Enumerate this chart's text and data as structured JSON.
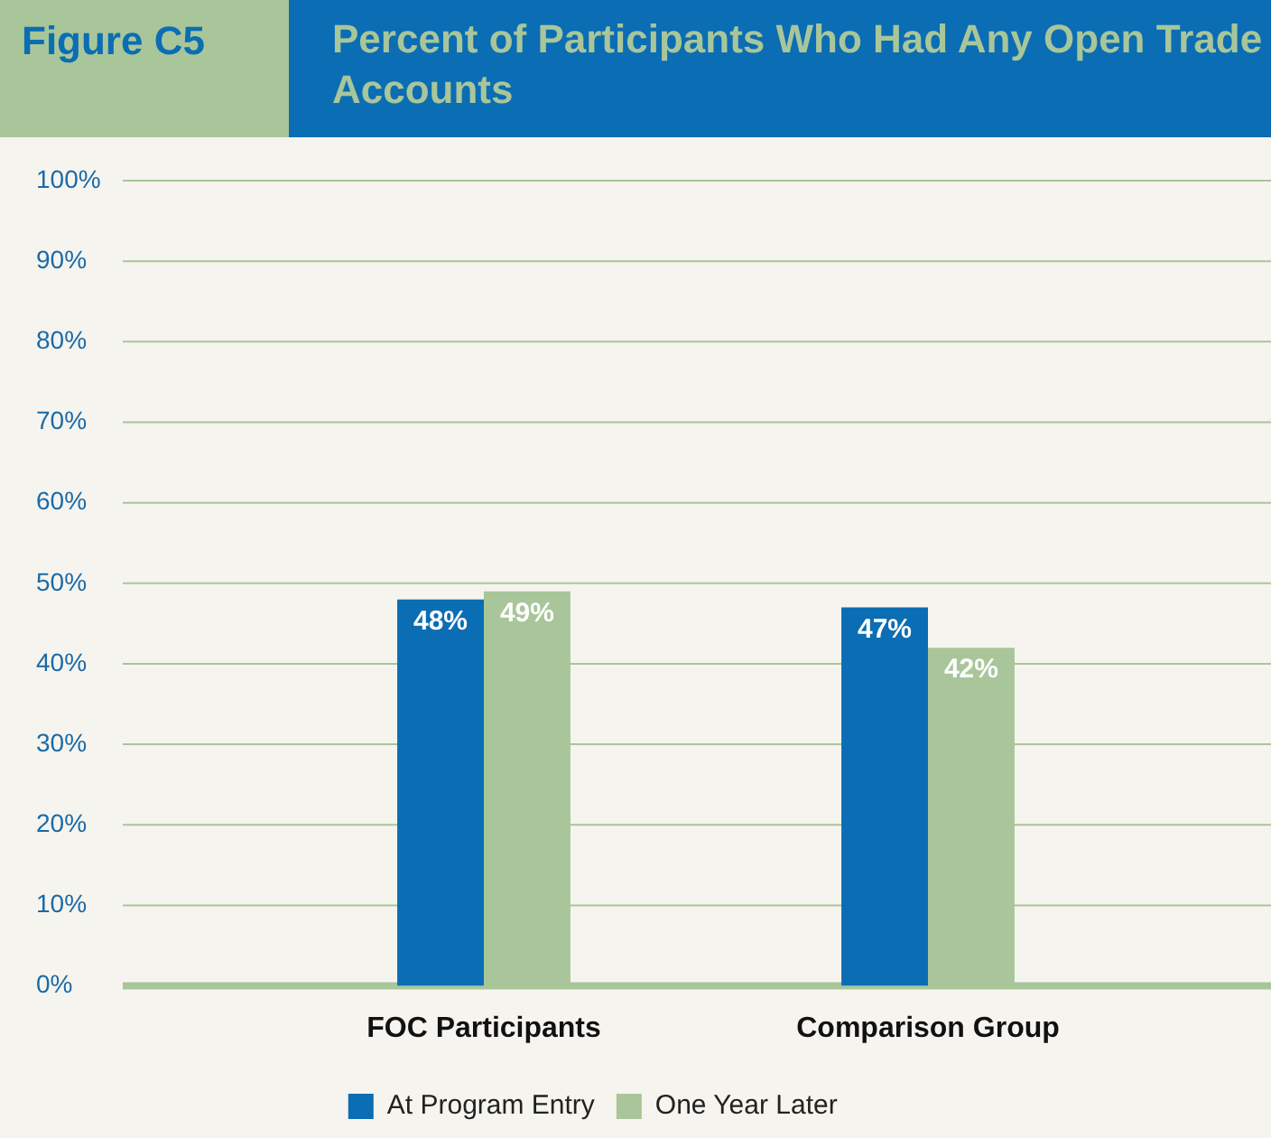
{
  "chart_data": {
    "type": "bar",
    "title": "Percent of Participants Who Had Any Open Trade Accounts",
    "annotations": [
      "Figure C5"
    ],
    "categories": [
      "FOC Participants",
      "Comparison Group"
    ],
    "series": [
      {
        "name": "At Program Entry",
        "color": "#0b6db3",
        "values": [
          48,
          47
        ],
        "value_labels": [
          "48%",
          "47%"
        ]
      },
      {
        "name": "One Year Later",
        "color": "#a8c69a",
        "values": [
          49,
          42
        ],
        "value_labels": [
          "49%",
          "42%"
        ]
      }
    ],
    "ylim": [
      0,
      100
    ],
    "yticks": [
      {
        "value": 0,
        "label": "0%"
      },
      {
        "value": 10,
        "label": "10%"
      },
      {
        "value": 20,
        "label": "20%"
      },
      {
        "value": 30,
        "label": "30%"
      },
      {
        "value": 40,
        "label": "40%"
      },
      {
        "value": 50,
        "label": "50%"
      },
      {
        "value": 60,
        "label": "60%"
      },
      {
        "value": 70,
        "label": "70%"
      },
      {
        "value": 80,
        "label": "80%"
      },
      {
        "value": 90,
        "label": "90%"
      },
      {
        "value": 100,
        "label": "100%"
      }
    ],
    "grid": "y",
    "legend": "bottom"
  }
}
